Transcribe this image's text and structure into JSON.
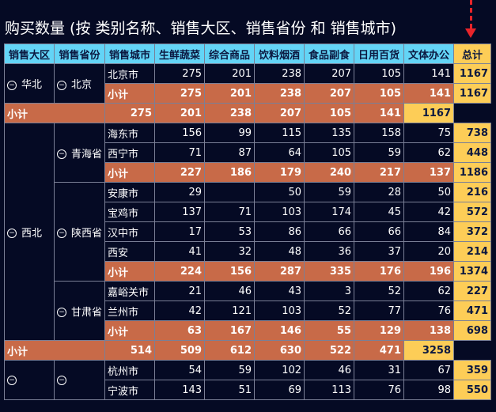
{
  "title": "购买数量 (按 类别名称、销售大区、销售省份 和 销售城市)",
  "icons": {
    "collapse": "−"
  },
  "headers": [
    "销售大区",
    "销售省份",
    "销售城市",
    "生鲜蔬菜",
    "综合商品",
    "饮料烟酒",
    "食品副食",
    "日用百货",
    "文体办公",
    "总计"
  ],
  "subtotal_label": "小计",
  "regions": [
    {
      "name": "华北",
      "provinces": [
        {
          "name": "北京",
          "cities": [
            {
              "name": "北京市",
              "values": [
                "275",
                "201",
                "238",
                "207",
                "105",
                "141"
              ],
              "total": "1167"
            }
          ],
          "subtotal": {
            "values": [
              "275",
              "201",
              "238",
              "207",
              "105",
              "141"
            ],
            "total": "1167"
          }
        }
      ],
      "subtotal": {
        "values": [
          "275",
          "201",
          "238",
          "207",
          "105",
          "141"
        ],
        "total": "1167"
      }
    },
    {
      "name": "西北",
      "provinces": [
        {
          "name": "青海省",
          "cities": [
            {
              "name": "海东市",
              "values": [
                "156",
                "99",
                "115",
                "135",
                "158",
                "75"
              ],
              "total": "738"
            },
            {
              "name": "西宁市",
              "values": [
                "71",
                "87",
                "64",
                "105",
                "59",
                "62"
              ],
              "total": "448"
            }
          ],
          "subtotal": {
            "values": [
              "227",
              "186",
              "179",
              "240",
              "217",
              "137"
            ],
            "total": "1186"
          }
        },
        {
          "name": "陕西省",
          "cities": [
            {
              "name": "安康市",
              "values": [
                "29",
                "",
                "50",
                "59",
                "28",
                "50"
              ],
              "total": "216"
            },
            {
              "name": "宝鸡市",
              "values": [
                "137",
                "71",
                "103",
                "174",
                "45",
                "42"
              ],
              "total": "572"
            },
            {
              "name": "汉中市",
              "values": [
                "17",
                "53",
                "86",
                "66",
                "66",
                "84"
              ],
              "total": "372"
            },
            {
              "name": "西安",
              "values": [
                "41",
                "32",
                "48",
                "36",
                "37",
                "20"
              ],
              "total": "214"
            }
          ],
          "subtotal": {
            "values": [
              "224",
              "156",
              "287",
              "335",
              "176",
              "196"
            ],
            "total": "1374"
          }
        },
        {
          "name": "甘肃省",
          "cities": [
            {
              "name": "嘉峪关市",
              "values": [
                "21",
                "46",
                "43",
                "3",
                "52",
                "62"
              ],
              "total": "227"
            },
            {
              "name": "兰州市",
              "values": [
                "42",
                "121",
                "103",
                "52",
                "77",
                "76"
              ],
              "total": "471"
            }
          ],
          "subtotal": {
            "values": [
              "63",
              "167",
              "146",
              "55",
              "129",
              "138"
            ],
            "total": "698"
          }
        }
      ],
      "subtotal": {
        "values": [
          "514",
          "509",
          "612",
          "630",
          "522",
          "471"
        ],
        "total": "3258"
      }
    },
    {
      "name": "",
      "provinces": [
        {
          "name": "",
          "cities": [
            {
              "name": "杭州市",
              "values": [
                "54",
                "59",
                "102",
                "46",
                "31",
                "67"
              ],
              "total": "359"
            },
            {
              "name": "宁波市",
              "values": [
                "143",
                "51",
                "69",
                "113",
                "76",
                "98"
              ],
              "total": "550"
            }
          ],
          "subtotal": null
        }
      ],
      "subtotal": null
    }
  ]
}
